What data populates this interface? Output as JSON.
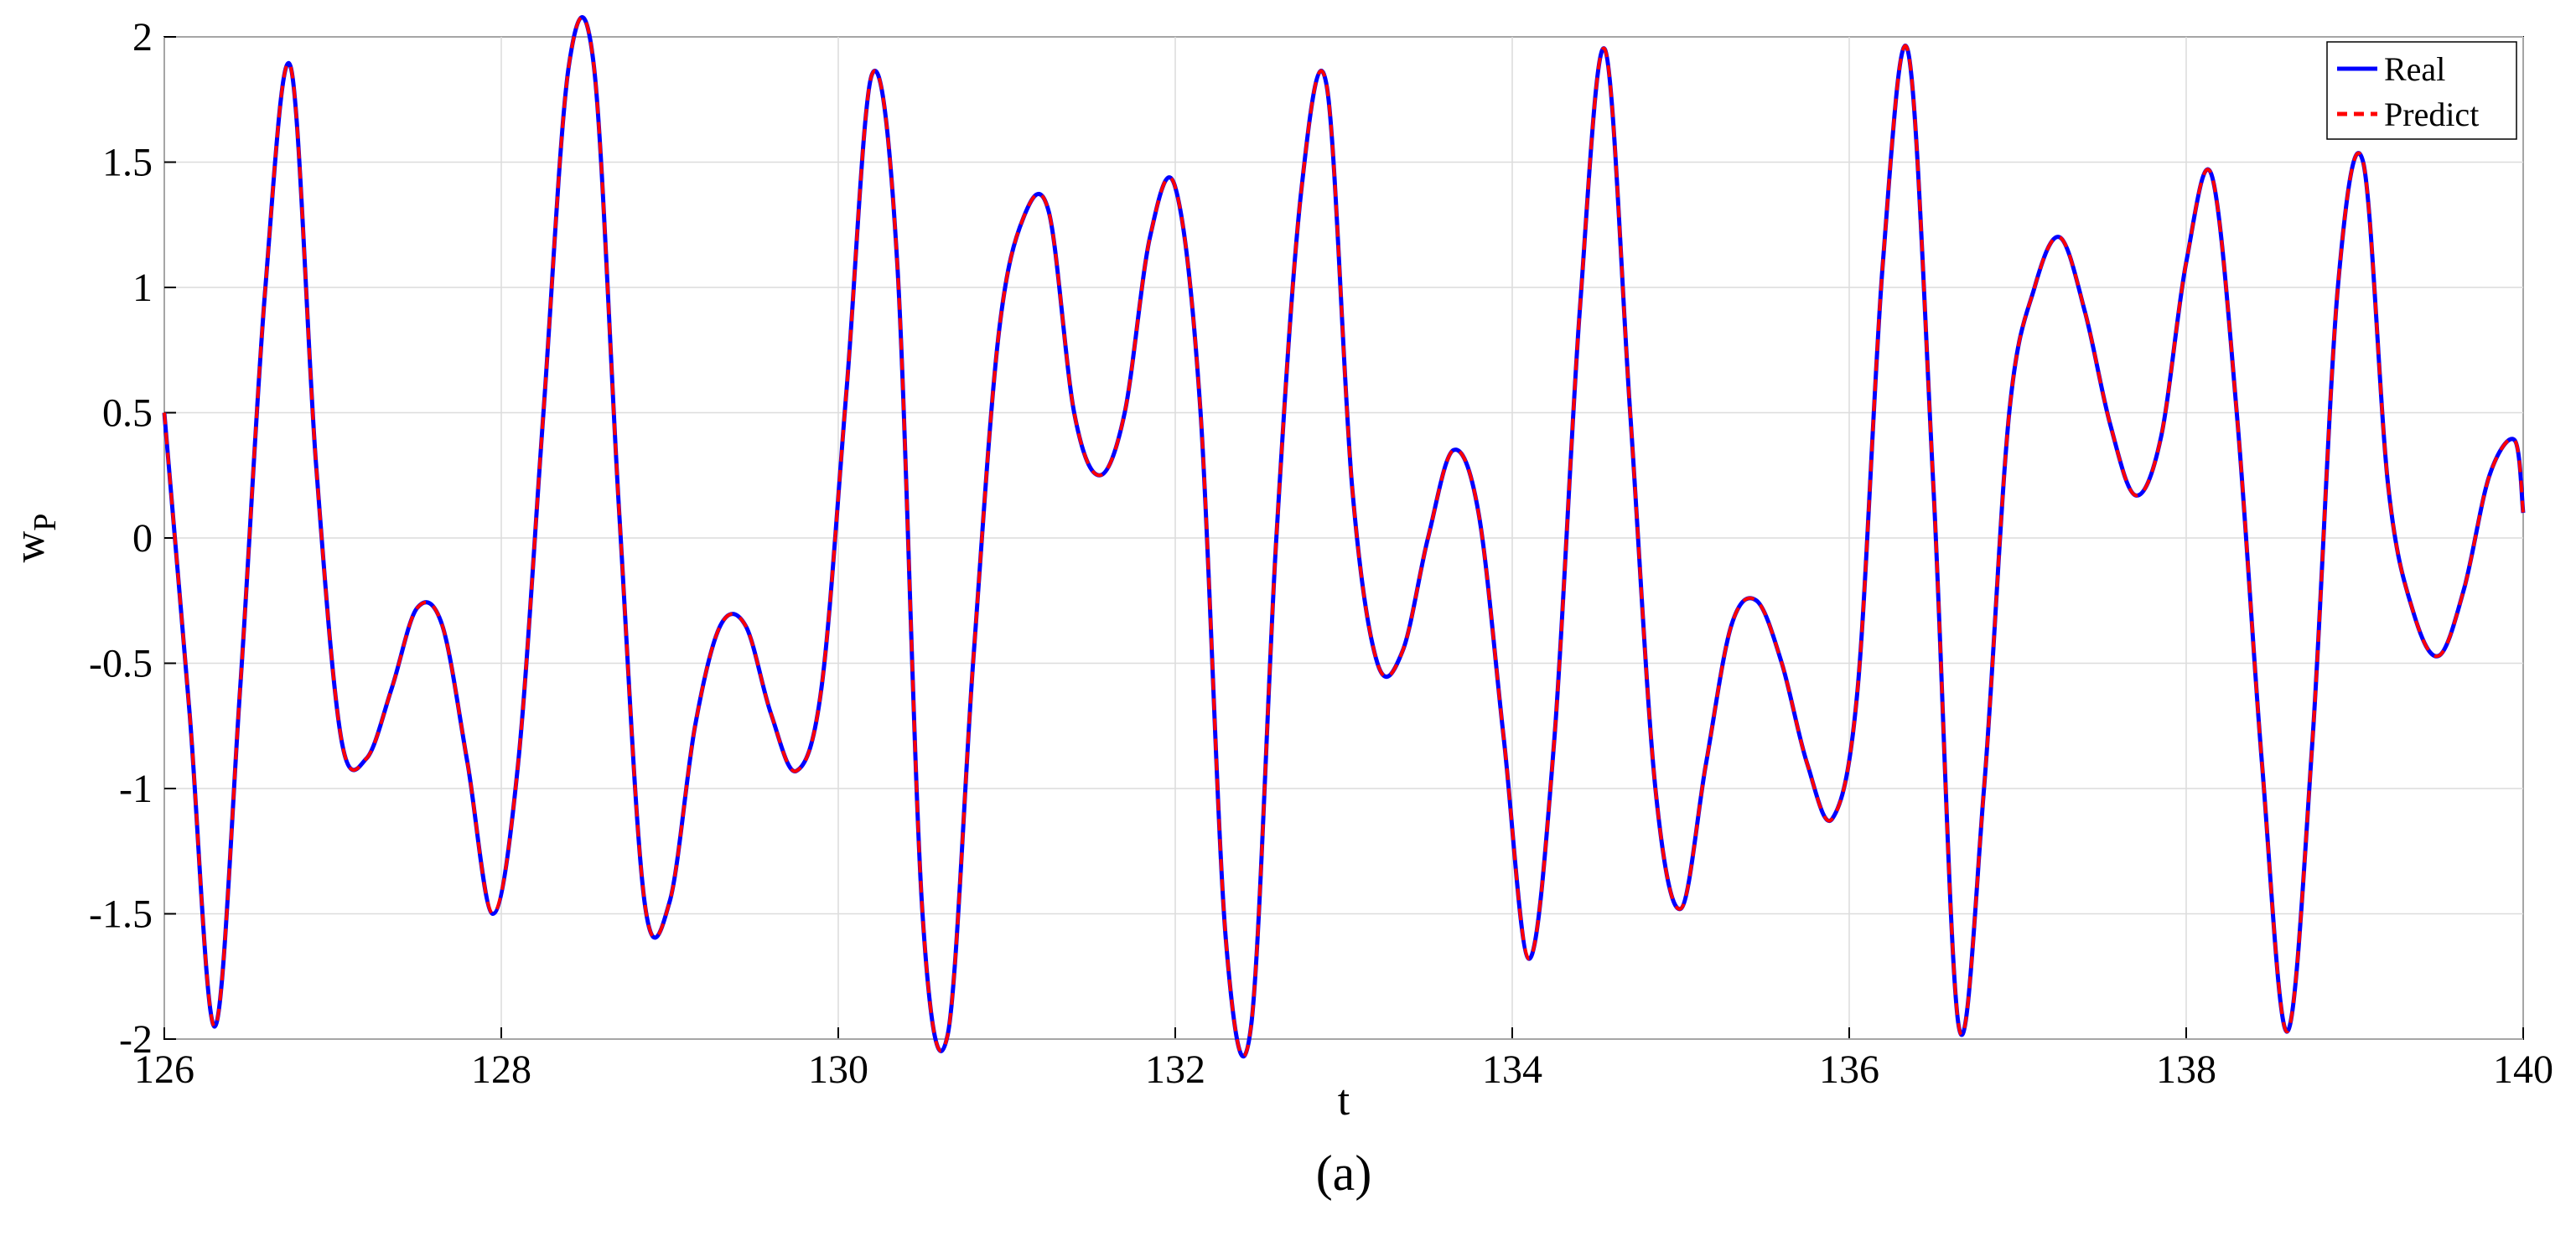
{
  "chart_data": {
    "type": "line",
    "xlabel": "t",
    "ylabel_main": "w",
    "ylabel_sub": "P",
    "panel_label": "(a)",
    "xlim": [
      126,
      140
    ],
    "ylim": [
      -2,
      2
    ],
    "xticks": [
      126,
      128,
      130,
      132,
      134,
      136,
      138,
      140
    ],
    "yticks": [
      -2,
      -1.5,
      -1,
      -0.5,
      0,
      0.5,
      1,
      1.5,
      2
    ],
    "grid": true,
    "legend_position": "top-right",
    "series": [
      {
        "name": "Real",
        "color": "#0000ff",
        "style": "solid",
        "x": [
          126.0,
          126.15,
          126.3,
          126.45,
          126.6,
          126.75,
          126.9,
          127.05,
          127.2,
          127.35,
          127.5,
          127.65,
          127.8,
          127.95,
          128.1,
          128.25,
          128.4,
          128.55,
          128.7,
          128.85,
          129.0,
          129.15,
          129.3,
          129.45,
          129.6,
          129.75,
          129.9,
          130.05,
          130.2,
          130.35,
          130.5,
          130.65,
          130.8,
          130.95,
          131.1,
          131.25,
          131.4,
          131.55,
          131.7,
          131.85,
          132.0,
          132.15,
          132.3,
          132.45,
          132.6,
          132.75,
          132.9,
          133.05,
          133.2,
          133.35,
          133.5,
          133.65,
          133.8,
          133.95,
          134.1,
          134.25,
          134.4,
          134.55,
          134.7,
          134.85,
          135.0,
          135.15,
          135.3,
          135.45,
          135.6,
          135.75,
          135.9,
          136.05,
          136.2,
          136.35,
          136.5,
          136.65,
          136.8,
          136.95,
          137.1,
          137.25,
          137.4,
          137.55,
          137.7,
          137.85,
          138.0,
          138.15,
          138.3,
          138.45,
          138.6,
          138.75,
          138.9,
          139.05,
          139.2,
          139.35,
          139.5,
          139.65,
          139.8,
          139.95,
          140.0
        ],
        "y": [
          0.5,
          -0.7,
          -1.95,
          -0.6,
          1.0,
          1.88,
          0.3,
          -0.8,
          -0.88,
          -0.6,
          -0.28,
          -0.35,
          -0.9,
          -1.5,
          -0.9,
          0.5,
          1.88,
          1.88,
          0.1,
          -1.45,
          -1.45,
          -0.75,
          -0.35,
          -0.35,
          -0.7,
          -0.93,
          -0.6,
          0.6,
          1.85,
          1.1,
          -1.5,
          -1.98,
          -0.5,
          0.8,
          1.28,
          1.3,
          0.5,
          0.25,
          0.5,
          1.2,
          1.4,
          0.5,
          -1.6,
          -1.95,
          0.0,
          1.4,
          1.8,
          0.2,
          -0.5,
          -0.45,
          0.0,
          0.35,
          0.1,
          -0.8,
          -1.68,
          -0.8,
          0.9,
          1.95,
          0.5,
          -1.0,
          -1.48,
          -0.9,
          -0.35,
          -0.25,
          -0.5,
          -0.9,
          -1.12,
          -0.6,
          1.1,
          1.94,
          0.2,
          -1.95,
          -1.0,
          0.5,
          1.0,
          1.2,
          0.9,
          0.45,
          0.17,
          0.4,
          1.1,
          1.45,
          0.5,
          -0.9,
          -1.97,
          -0.8,
          1.0,
          1.5,
          0.2,
          -0.3,
          -0.47,
          -0.2,
          0.25,
          0.39,
          0.1
        ]
      },
      {
        "name": "Predict",
        "color": "#ff0000",
        "style": "dashed"
      }
    ]
  }
}
